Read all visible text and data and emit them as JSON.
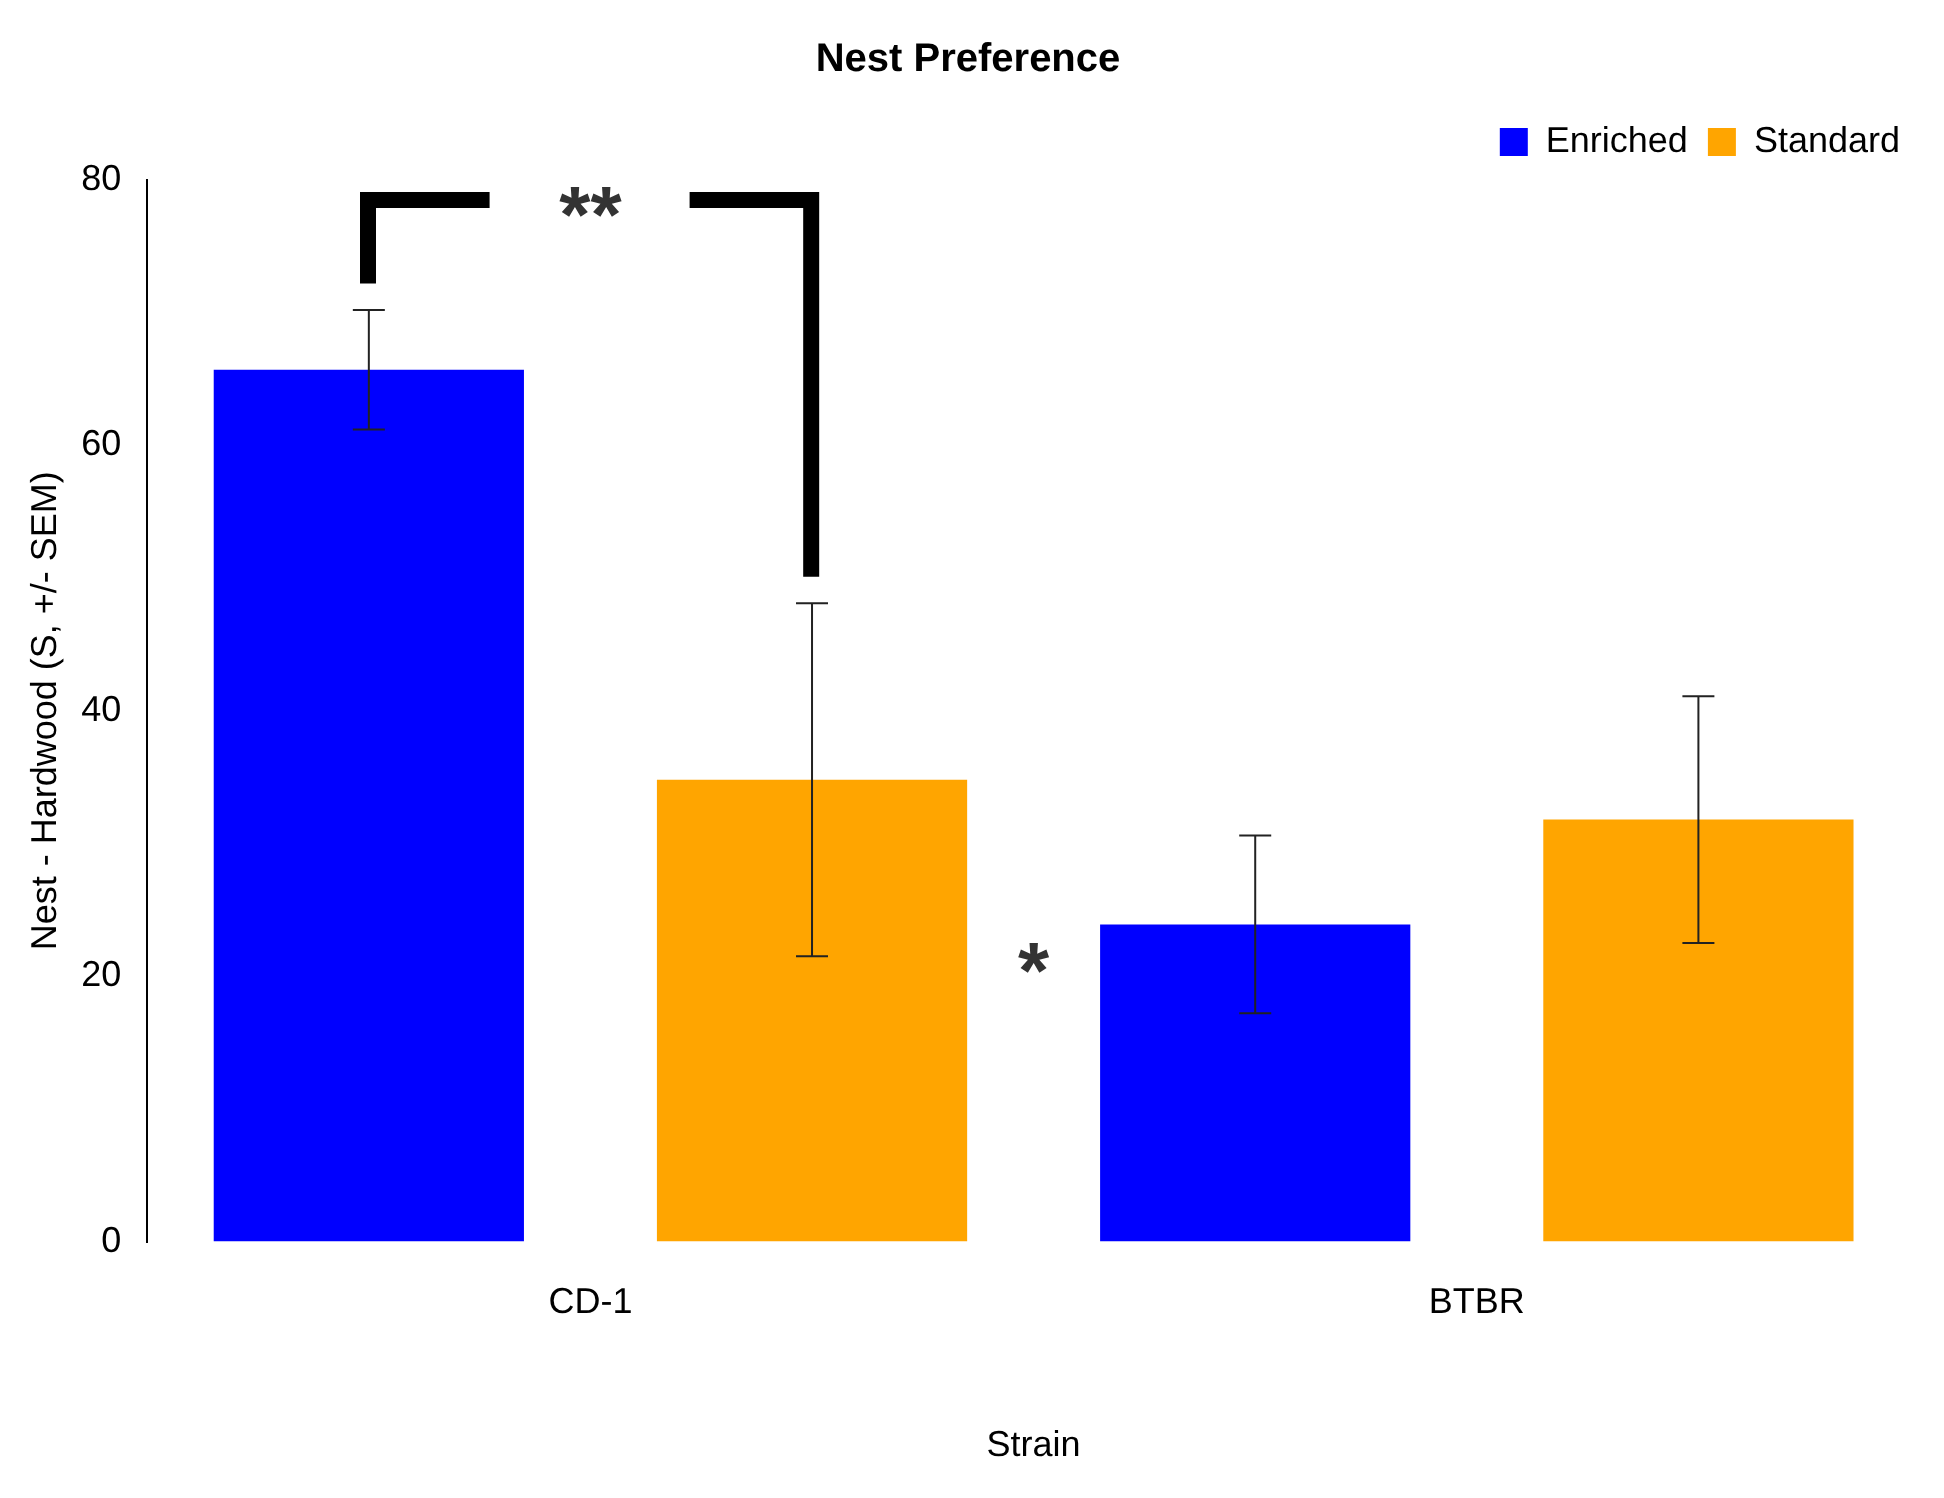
{
  "chart_data": {
    "type": "bar",
    "title": "Nest Preference",
    "xlabel": "Strain",
    "ylabel": "Nest - Hardwood (S, +/- SEM)",
    "categories": [
      "CD-1",
      "BTBR"
    ],
    "series": [
      {
        "name": "Enriched",
        "color": "#0000ff",
        "values": [
          65.7,
          23.9
        ],
        "errors": [
          4.5,
          6.7
        ]
      },
      {
        "name": "Standard",
        "color": "#ffa500",
        "values": [
          34.8,
          31.8
        ],
        "errors": [
          13.3,
          9.3
        ]
      }
    ],
    "ylim": [
      0,
      80
    ],
    "yticks": [
      0,
      20,
      40,
      60,
      80
    ],
    "grid": false,
    "legend": "top right",
    "annotations": [
      "**",
      "*"
    ]
  }
}
